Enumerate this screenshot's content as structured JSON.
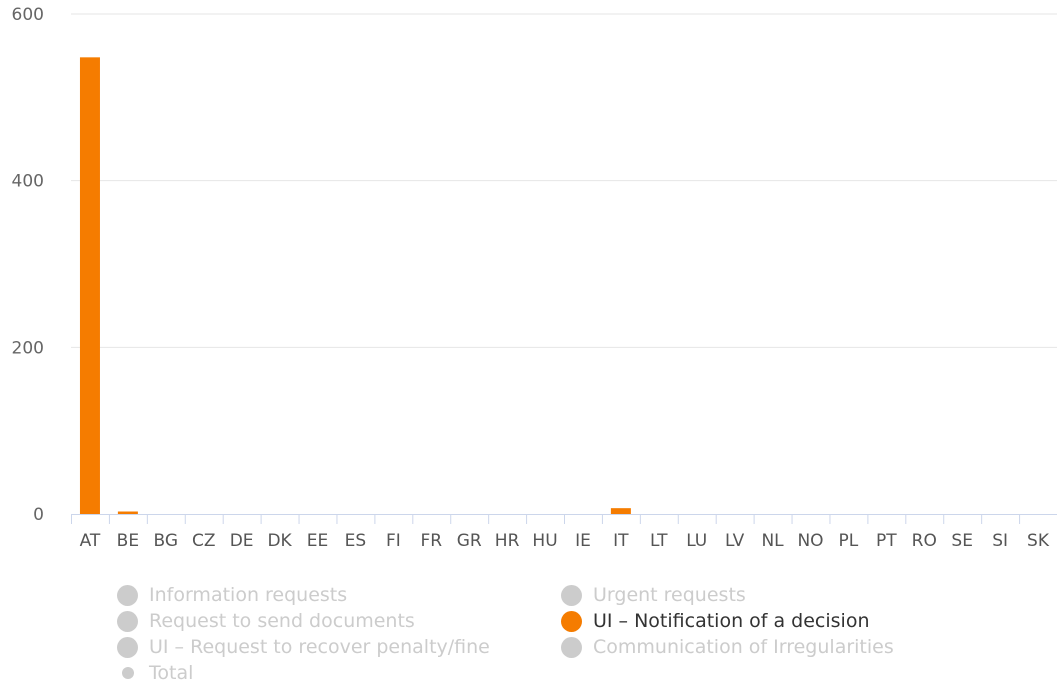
{
  "chart_data": {
    "type": "bar",
    "title": "",
    "xlabel": "",
    "ylabel": "",
    "ylim": [
      0,
      600
    ],
    "yticks": [
      0,
      200,
      400,
      600
    ],
    "grid": true,
    "legend_position": "bottom",
    "categories": [
      "AT",
      "BE",
      "BG",
      "CZ",
      "DE",
      "DK",
      "EE",
      "ES",
      "FI",
      "FR",
      "GR",
      "HR",
      "HU",
      "IE",
      "IT",
      "LT",
      "LU",
      "LV",
      "NL",
      "NO",
      "PL",
      "PT",
      "RO",
      "SE",
      "SI",
      "SK"
    ],
    "series": [
      {
        "name": "UI – Notification of a decision",
        "color": "#f57c00",
        "values": [
          548,
          3,
          0,
          0,
          0,
          0,
          0,
          0,
          0,
          0,
          0,
          0,
          0,
          0,
          7,
          0,
          0,
          0,
          0,
          0,
          0,
          0,
          0,
          0,
          0,
          0
        ]
      }
    ]
  },
  "legend": {
    "items": [
      {
        "label": "Information requests",
        "active": false,
        "marker": "circle"
      },
      {
        "label": "Urgent requests",
        "active": false,
        "marker": "circle"
      },
      {
        "label": "Request to send documents",
        "active": false,
        "marker": "circle"
      },
      {
        "label": "UI – Notification of a decision",
        "active": true,
        "marker": "circle",
        "color": "#f57c00"
      },
      {
        "label": "UI – Request to recover penalty/fine",
        "active": false,
        "marker": "circle"
      },
      {
        "label": "Communication of Irregularities",
        "active": false,
        "marker": "circle"
      },
      {
        "label": "Total",
        "active": false,
        "marker": "small-circle"
      }
    ]
  },
  "colors": {
    "accent": "#f57c00",
    "inactive": "#cccccc",
    "grid": "#e6e6e6",
    "axis": "#ccd6eb"
  }
}
